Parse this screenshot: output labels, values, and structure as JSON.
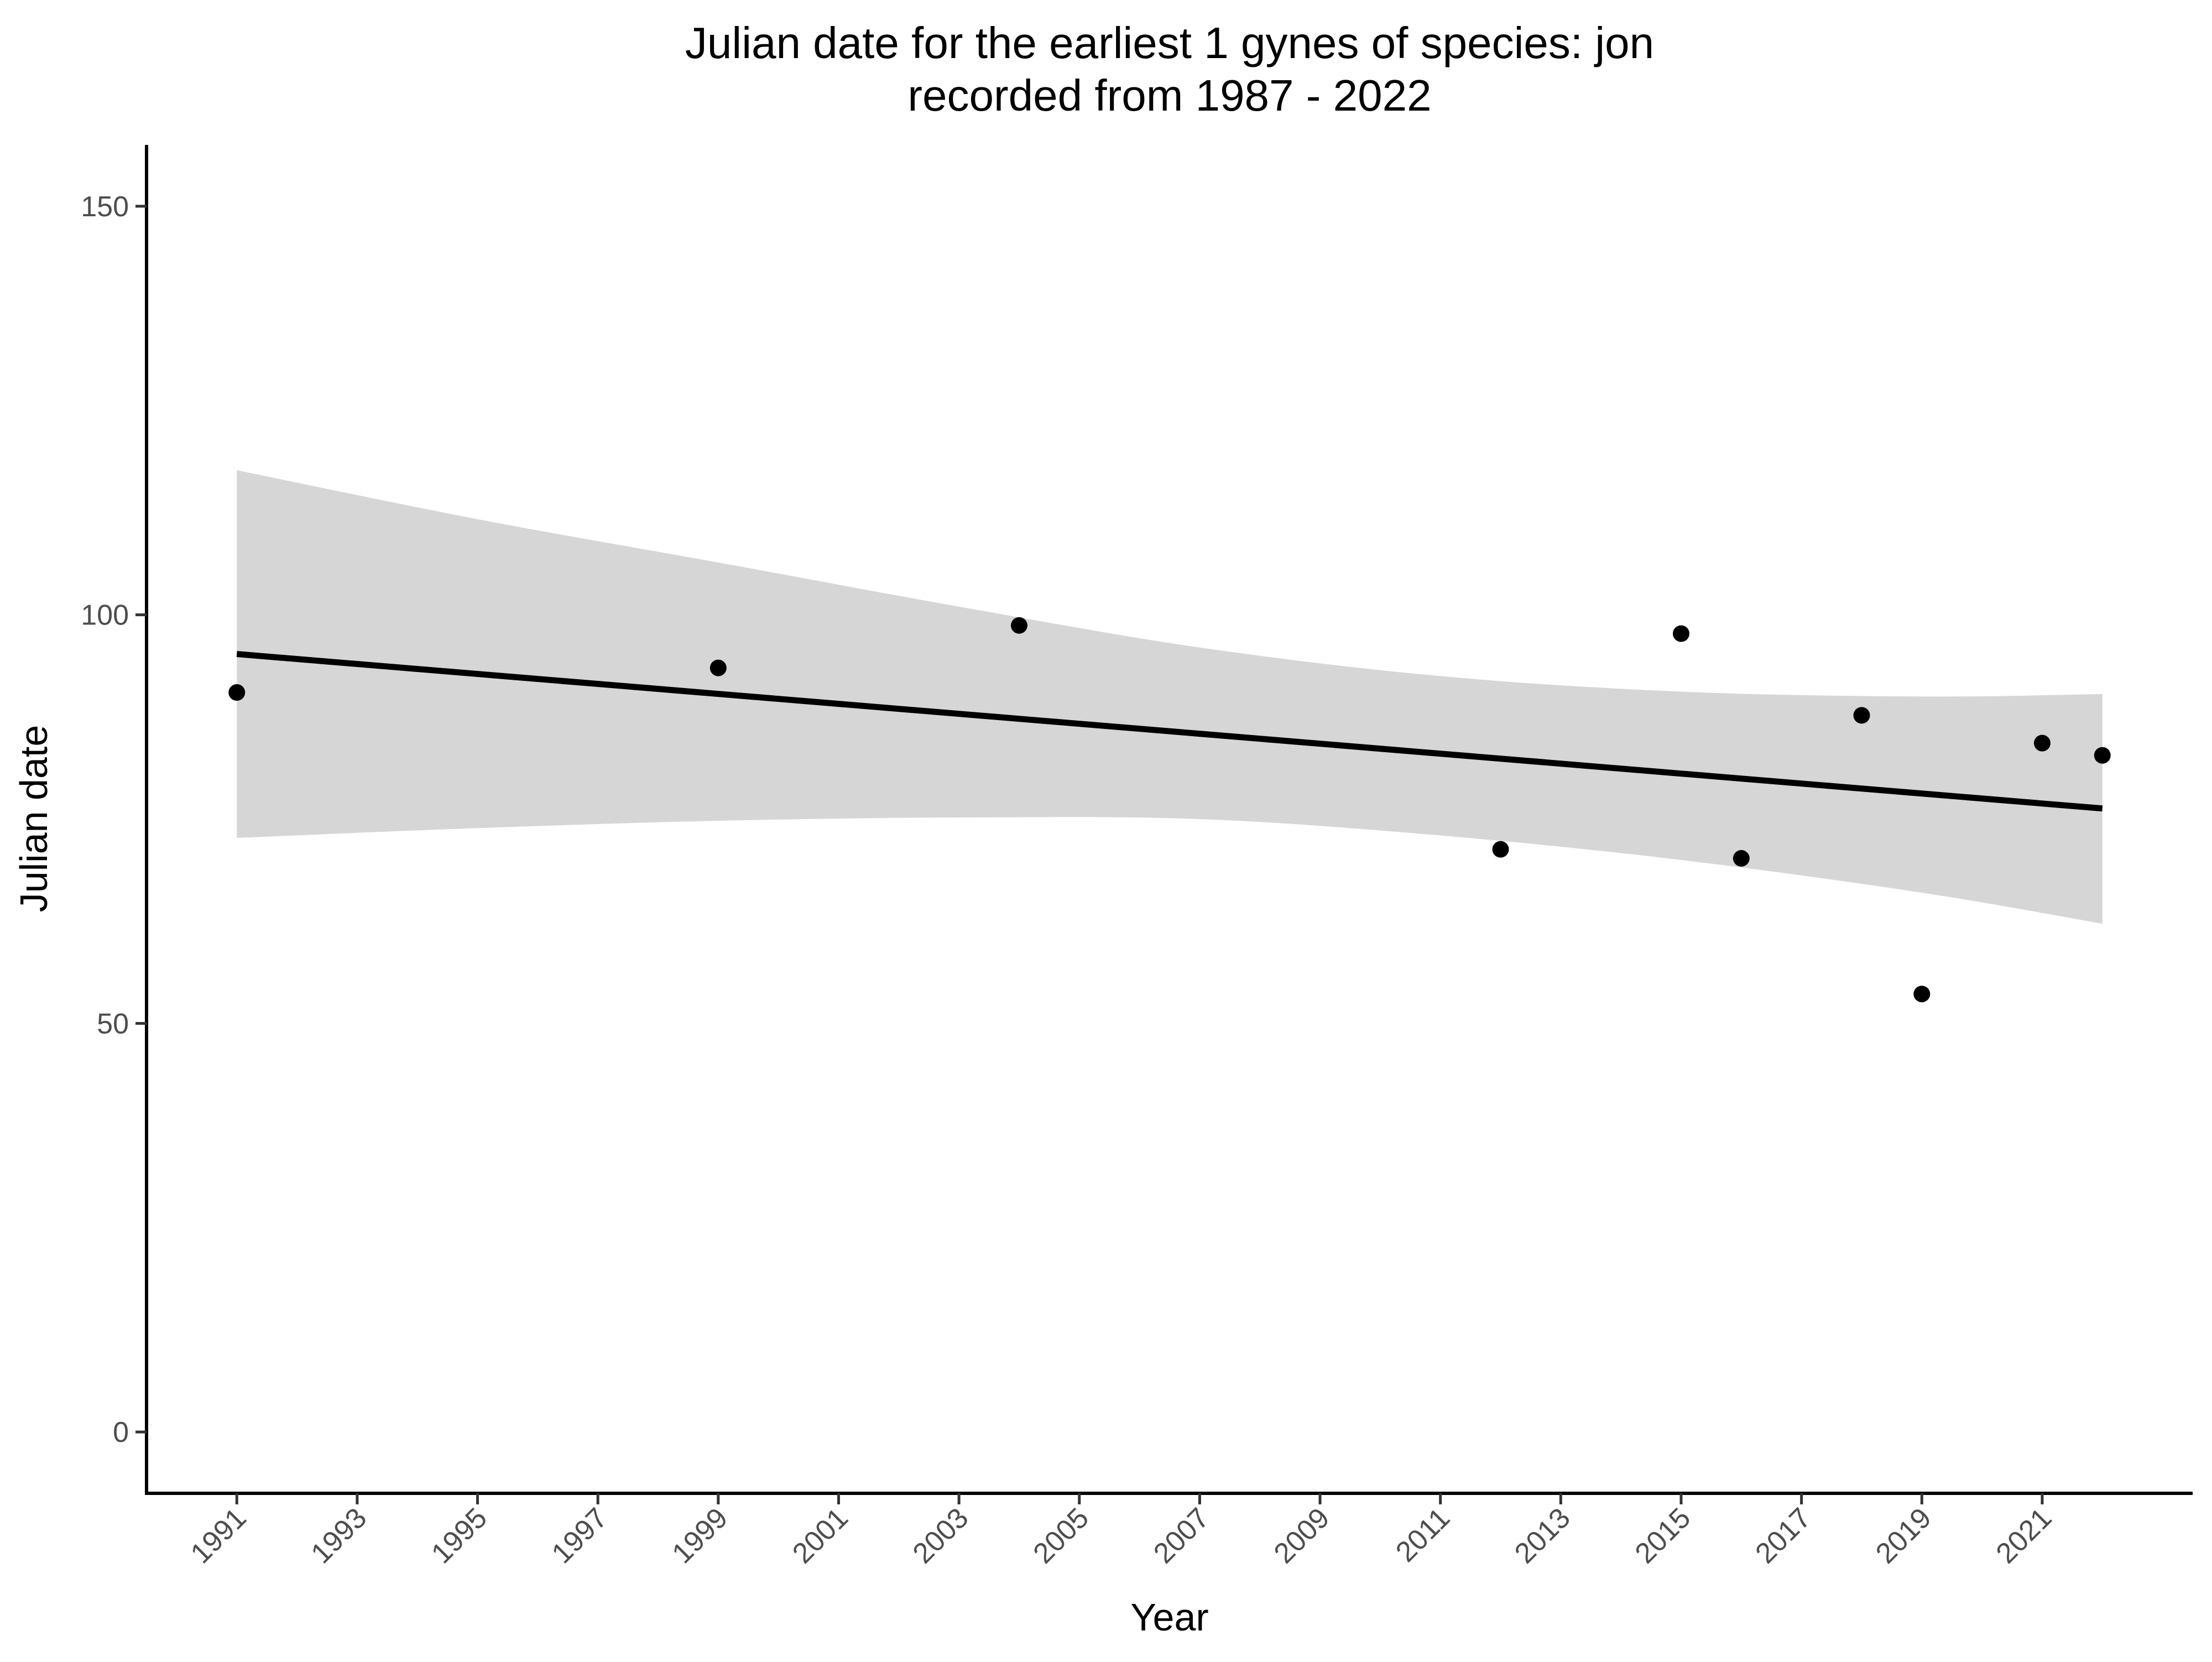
{
  "chart_data": {
    "type": "scatter",
    "title": "Julian date for the earliest 1 gynes of species: jon",
    "subtitle": "recorded from 1987 - 2022",
    "xlabel": "Year",
    "ylabel": "Julian date",
    "x_ticks": [
      "1991",
      "1993",
      "1995",
      "1997",
      "1999",
      "2001",
      "2003",
      "2005",
      "2007",
      "2009",
      "2011",
      "2013",
      "2015",
      "2017",
      "2019",
      "2021"
    ],
    "y_ticks": [
      "0",
      "50",
      "100",
      "150"
    ],
    "xlim": [
      1989.5,
      2023.5
    ],
    "ylim": [
      -7.5,
      157.5
    ],
    "grid": false,
    "legend": "none",
    "series": [
      {
        "points": [
          {
            "x": 1991,
            "y": 90.5
          },
          {
            "x": 1999,
            "y": 93.5
          },
          {
            "x": 2004,
            "y": 98.7
          },
          {
            "x": 2012,
            "y": 71.3
          },
          {
            "x": 2015,
            "y": 97.7
          },
          {
            "x": 2016,
            "y": 70.2
          },
          {
            "x": 2018,
            "y": 87.7
          },
          {
            "x": 2019,
            "y": 53.6
          },
          {
            "x": 2021,
            "y": 84.3
          },
          {
            "x": 2022,
            "y": 82.8
          }
        ]
      }
    ],
    "trend_line": {
      "x": [
        1991,
        2022
      ],
      "y": [
        95.2,
        76.3
      ]
    },
    "confidence_band": {
      "x": [
        1991,
        1995,
        1999,
        2003,
        2007,
        2011,
        2015,
        2019,
        2022
      ],
      "upper": [
        117.7,
        111.7,
        106.4,
        101.0,
        96.0,
        92.5,
        90.6,
        90.0,
        90.3
      ],
      "lower": [
        72.7,
        73.9,
        74.8,
        75.2,
        75.0,
        73.0,
        70.0,
        66.0,
        62.2
      ]
    },
    "colors": {
      "points": "#000000",
      "line": "#000000",
      "band": "#d6d6d6",
      "axis": "#000000",
      "tick_text": "#4d4d4d"
    }
  }
}
